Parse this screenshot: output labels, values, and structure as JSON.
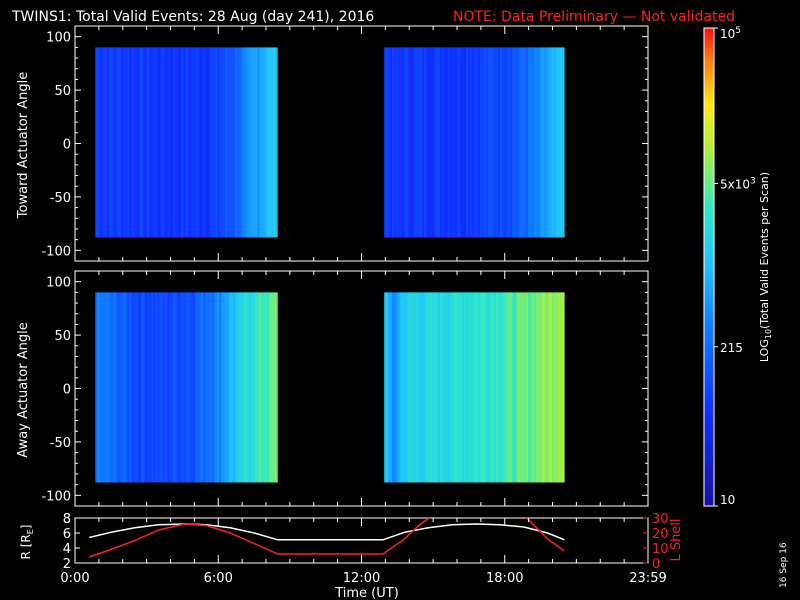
{
  "header": {
    "title": "TWINS1: Total Valid Events: 28 Aug (day 241), 2016",
    "note": "NOTE: Data Preliminary — Not validated"
  },
  "colors": {
    "background": "#000000",
    "axes": "#ffffff",
    "note": "#ff2020",
    "lshell": "#ff2020",
    "radius": "#ffffff"
  },
  "footer": {
    "stamp": "16 Sep 16"
  },
  "chart_data": [
    {
      "type": "heatmap",
      "panel": "toward",
      "ylabel": "Toward Actuator Angle",
      "ylim": [
        -110,
        110
      ],
      "yticks": [
        -100,
        -50,
        0,
        50,
        100
      ],
      "xlim": [
        0,
        24
      ],
      "data_blocks": [
        {
          "t_start": 0.85,
          "t_end": 8.45,
          "angle_min": -88,
          "angle_max": 90
        },
        {
          "t_start": 12.95,
          "t_end": 20.45,
          "angle_min": -88,
          "angle_max": 90
        }
      ],
      "intensity_profile": {
        "times": [
          0.85,
          2.0,
          3.5,
          5.0,
          6.0,
          6.6,
          7.2,
          7.8,
          8.45,
          12.95,
          13.4,
          14.0,
          15.5,
          17.0,
          18.5,
          19.3,
          20.0,
          20.45
        ],
        "values": [
          90,
          80,
          70,
          75,
          90,
          150,
          350,
          800,
          1500,
          90,
          60,
          80,
          80,
          90,
          150,
          300,
          700,
          1200
        ]
      }
    },
    {
      "type": "heatmap",
      "panel": "away",
      "ylabel": "Away Actuator Angle",
      "ylim": [
        -110,
        110
      ],
      "yticks": [
        -100,
        -50,
        0,
        50,
        100
      ],
      "xlim": [
        0,
        24
      ],
      "data_blocks": [
        {
          "t_start": 0.85,
          "t_end": 8.45,
          "angle_min": -88,
          "angle_max": 90
        },
        {
          "t_start": 12.95,
          "t_end": 20.45,
          "angle_min": -88,
          "angle_max": 90
        }
      ],
      "intensity_profile": {
        "times": [
          0.85,
          1.6,
          2.5,
          3.5,
          5.0,
          6.0,
          6.8,
          7.6,
          8.45,
          12.95,
          13.3,
          13.8,
          15.0,
          16.5,
          18.0,
          19.0,
          20.0,
          20.45
        ],
        "values": [
          300,
          200,
          120,
          100,
          150,
          400,
          1200,
          3000,
          5000,
          1500,
          200,
          1500,
          1800,
          2500,
          3500,
          5000,
          8000,
          12000
        ]
      }
    },
    {
      "type": "line",
      "panel": "orbit",
      "ylabel": "R [R",
      "ylabel_sub": "E",
      "ylabel_close": "]",
      "ylim": [
        2,
        8
      ],
      "yticks": [
        2,
        4,
        6,
        8
      ],
      "y2label": "L Shell",
      "y2lim": [
        0,
        30
      ],
      "y2ticks": [
        0,
        10,
        20,
        30
      ],
      "series": [
        {
          "axis": "left",
          "x": [
            0.6,
            1.5,
            2.5,
            3.5,
            4.6,
            5.5,
            6.5,
            7.5,
            8.5,
            10.0,
            11.5,
            12.9,
            13.8,
            14.8,
            15.8,
            16.8,
            17.8,
            18.8,
            19.8,
            20.5
          ],
          "y": [
            5.4,
            6.1,
            6.7,
            7.1,
            7.2,
            7.1,
            6.7,
            6.0,
            5.1,
            5.1,
            5.1,
            5.1,
            6.1,
            6.7,
            7.1,
            7.2,
            7.1,
            6.8,
            6.0,
            5.1
          ]
        },
        {
          "axis": "right",
          "x": [
            0.6,
            1.5,
            2.5,
            3.5,
            4.6,
            5.5,
            6.5,
            7.5,
            8.5,
            10.0,
            11.5,
            12.9,
            13.8,
            14.4,
            15.0,
            18.8,
            19.3,
            19.8,
            20.5
          ],
          "y": [
            4,
            9,
            15,
            22,
            26,
            25,
            20,
            13,
            6,
            6,
            6,
            6,
            16,
            25,
            32,
            32,
            24,
            16,
            8
          ]
        }
      ]
    }
  ],
  "time_axis": {
    "label": "Time (UT)",
    "ticks": [
      0,
      6,
      12,
      18,
      24
    ],
    "tick_labels": [
      "0:00",
      "6:00",
      "12:00",
      "18:00",
      "23:59"
    ]
  },
  "colorbar": {
    "title_prefix": "LOG",
    "title_sub": "10",
    "title_rest": "(Total Valid Events per Scan)",
    "scale": "log",
    "range": [
      10,
      100000
    ],
    "labels": [
      {
        "value": 10,
        "text": "10"
      },
      {
        "value": 215,
        "text": "215"
      },
      {
        "value": 5000,
        "text": "5x10",
        "sup": "3"
      },
      {
        "value": 100000,
        "text": "10",
        "sup": "5"
      }
    ]
  }
}
